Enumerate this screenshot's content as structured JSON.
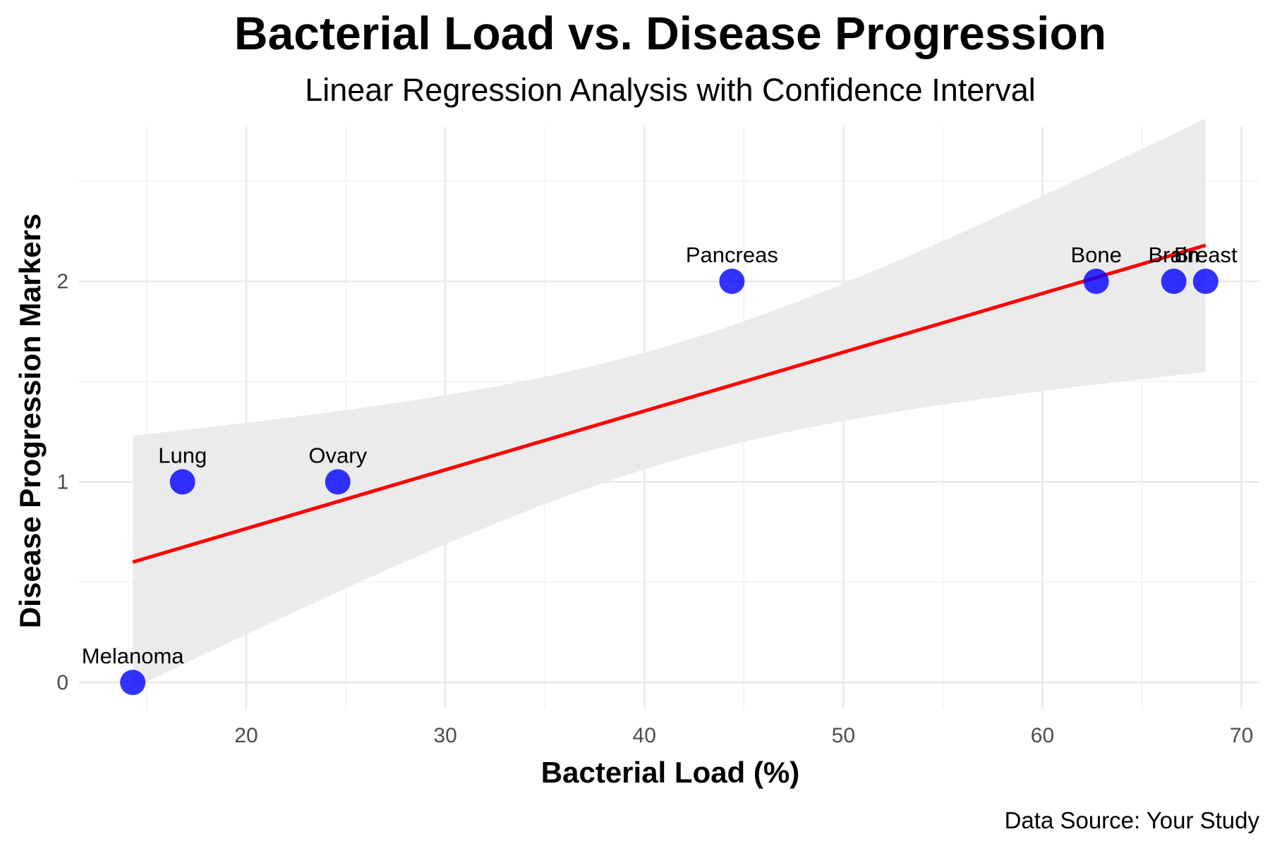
{
  "chart_data": {
    "type": "scatter",
    "title": "Bacterial Load vs. Disease Progression",
    "subtitle": "Linear Regression Analysis with Confidence Interval",
    "xlabel": "Bacterial Load (%)",
    "ylabel": "Disease Progression Markers",
    "caption": "Data Source: Your Study",
    "xlim": [
      11.6,
      70.9
    ],
    "ylim": [
      -0.13,
      2.77
    ],
    "x_ticks": [
      20,
      30,
      40,
      50,
      60,
      70
    ],
    "y_ticks": [
      0,
      1,
      2
    ],
    "grid": true,
    "points": [
      {
        "label": "Melanoma",
        "x": 14.3,
        "y": 0
      },
      {
        "label": "Lung",
        "x": 16.8,
        "y": 1
      },
      {
        "label": "Ovary",
        "x": 24.6,
        "y": 1
      },
      {
        "label": "Pancreas",
        "x": 44.4,
        "y": 2
      },
      {
        "label": "Bone",
        "x": 62.7,
        "y": 2
      },
      {
        "label": "Brain",
        "x": 66.6,
        "y": 2
      },
      {
        "label": "Breast",
        "x": 68.2,
        "y": 2
      }
    ],
    "regression": {
      "x": [
        14.3,
        68.2
      ],
      "y": [
        0.6,
        2.18
      ]
    },
    "confidence_band": {
      "x": [
        14.3,
        41.2,
        68.2
      ],
      "lower": [
        -0.03,
        1.06,
        1.58
      ],
      "upper": [
        1.23,
        1.64,
        2.76
      ]
    },
    "colors": {
      "point": "#0000ff",
      "regression_line": "#ff0000",
      "confidence_band": "#ebebeb",
      "grid_major": "#ebebeb",
      "grid_minor": "#f2f2f2"
    }
  }
}
